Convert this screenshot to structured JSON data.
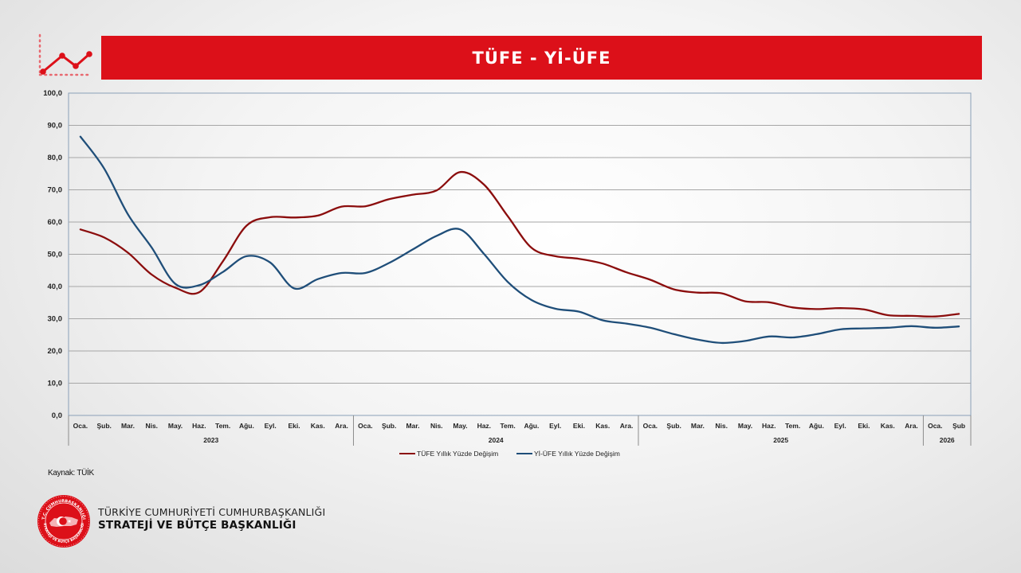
{
  "header": {
    "title": "TÜFE - Yİ-ÜFE"
  },
  "source": "Kaynak: TÜİK",
  "organization": {
    "line1": "TÜRKİYE CUMHURİYETİ CUMHURBAŞKANLIĞI",
    "line2": "STRATEJİ VE BÜTÇE BAŞKANLIĞI",
    "seal_text": "T.C. CUMHURBAŞKANLIĞI STRATEJİ VE BÜTÇE BAŞKANLIĞI"
  },
  "icons": {
    "header_icon": "line-chart-icon",
    "logo": "presidency-seal-icon"
  },
  "colors": {
    "accent": "#dc1019",
    "tufe": "#8b0d0d",
    "yiufe": "#1f4e79",
    "grid": "#a6a6a6"
  },
  "chart_data": {
    "type": "line",
    "title": "",
    "xlabel": "",
    "ylabel": "",
    "ylim": [
      0,
      100
    ],
    "yticks": [
      "0,0",
      "10,0",
      "20,0",
      "30,0",
      "40,0",
      "50,0",
      "60,0",
      "70,0",
      "80,0",
      "90,0",
      "100,0"
    ],
    "categories": [
      "Oca.",
      "Şub.",
      "Mar.",
      "Nis.",
      "May.",
      "Haz.",
      "Tem.",
      "Ağu.",
      "Eyl.",
      "Eki.",
      "Kas.",
      "Ara.",
      "Oca.",
      "Şub.",
      "Mar.",
      "Nis.",
      "May.",
      "Haz.",
      "Tem.",
      "Ağu.",
      "Eyl.",
      "Eki.",
      "Kas.",
      "Ara.",
      "Oca.",
      "Şub.",
      "Mar.",
      "Nis.",
      "May.",
      "Haz.",
      "Tem.",
      "Ağu.",
      "Eyl.",
      "Eki.",
      "Kas.",
      "Ara.",
      "Oca.",
      "Şub"
    ],
    "year_groups": [
      {
        "label": "2023",
        "count": 12
      },
      {
        "label": "2024",
        "count": 12
      },
      {
        "label": "2025",
        "count": 12
      },
      {
        "label": "2026",
        "count": 2
      }
    ],
    "series": [
      {
        "name": "TÜFE Yıllık Yüzde Değişim",
        "values": [
          57.7,
          55.2,
          50.5,
          43.7,
          39.6,
          38.2,
          47.8,
          58.9,
          61.5,
          61.4,
          62.0,
          64.8,
          64.9,
          67.1,
          68.5,
          69.8,
          75.5,
          71.6,
          61.8,
          52.0,
          49.4,
          48.6,
          47.1,
          44.4,
          42.1,
          39.1,
          38.1,
          37.9,
          35.4,
          35.1,
          33.5,
          33.0,
          33.3,
          32.9,
          31.1,
          30.9,
          30.7,
          31.5
        ]
      },
      {
        "name": "Yİ-ÜFE Yıllık Yüzde Değişim",
        "values": [
          86.5,
          76.6,
          62.4,
          52.1,
          40.8,
          40.4,
          44.5,
          49.4,
          47.4,
          39.4,
          42.3,
          44.2,
          44.2,
          47.3,
          51.5,
          55.7,
          57.7,
          50.1,
          41.4,
          35.8,
          33.1,
          32.2,
          29.5,
          28.5,
          27.2,
          25.2,
          23.5,
          22.5,
          23.1,
          24.5,
          24.2,
          25.2,
          26.7,
          27.0,
          27.2,
          27.7,
          27.2,
          27.6
        ]
      }
    ]
  }
}
